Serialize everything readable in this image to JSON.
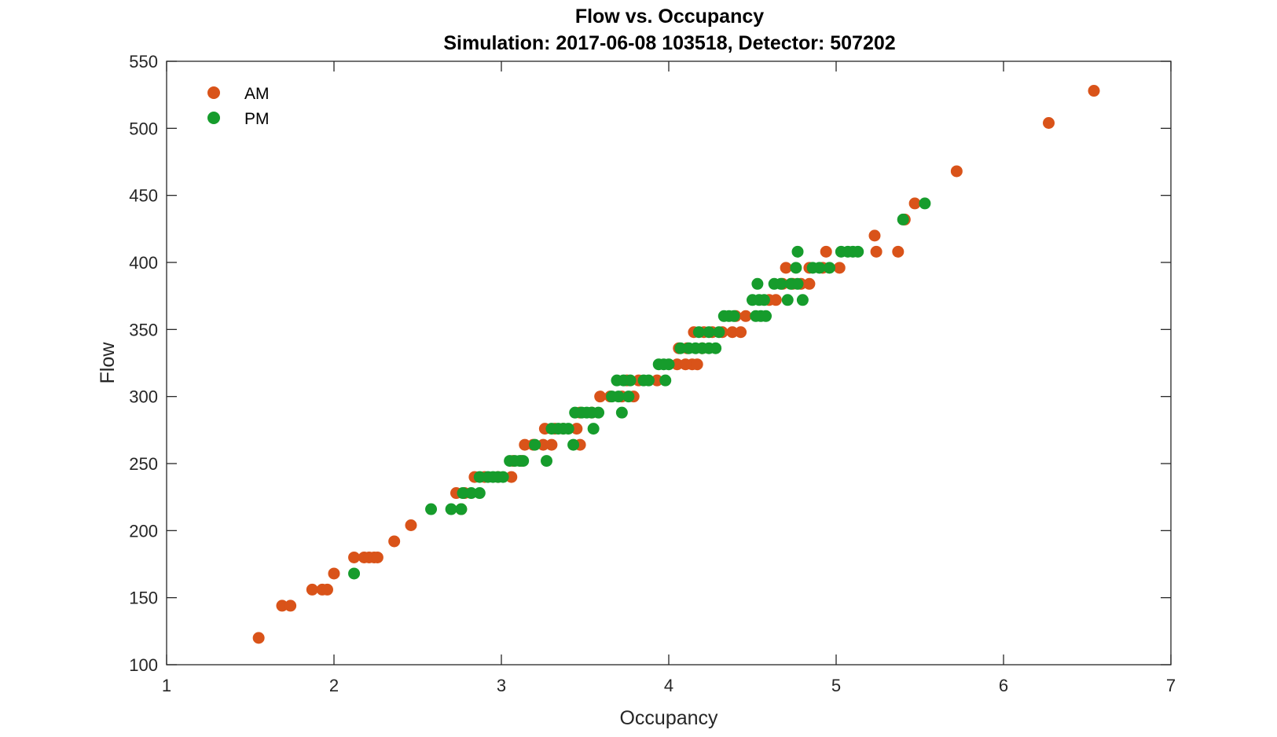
{
  "chart_data": {
    "type": "scatter",
    "title": "Flow vs. Occupancy",
    "subtitle": "Simulation:  2017-06-08 103518,  Detector:  507202",
    "xlabel": "Occupancy",
    "ylabel": "Flow",
    "xlim": [
      1,
      7
    ],
    "ylim": [
      100,
      550
    ],
    "xticks": [
      1,
      2,
      3,
      4,
      5,
      6,
      7
    ],
    "yticks": [
      100,
      150,
      200,
      250,
      300,
      350,
      400,
      450,
      500,
      550
    ],
    "grid": false,
    "legend_position": "top-left",
    "series": [
      {
        "name": "AM",
        "color": "#d95319",
        "points": [
          [
            1.55,
            120
          ],
          [
            1.69,
            144
          ],
          [
            1.74,
            144
          ],
          [
            1.87,
            156
          ],
          [
            1.93,
            156
          ],
          [
            1.96,
            156
          ],
          [
            2.0,
            168
          ],
          [
            2.12,
            180
          ],
          [
            2.18,
            180
          ],
          [
            2.21,
            180
          ],
          [
            2.24,
            180
          ],
          [
            2.26,
            180
          ],
          [
            2.36,
            192
          ],
          [
            2.46,
            204
          ],
          [
            2.76,
            216
          ],
          [
            2.73,
            228
          ],
          [
            2.78,
            228
          ],
          [
            2.84,
            240
          ],
          [
            2.9,
            240
          ],
          [
            2.98,
            240
          ],
          [
            3.06,
            240
          ],
          [
            3.07,
            252
          ],
          [
            3.12,
            252
          ],
          [
            3.14,
            264
          ],
          [
            3.19,
            264
          ],
          [
            3.25,
            264
          ],
          [
            3.3,
            264
          ],
          [
            3.47,
            264
          ],
          [
            3.26,
            276
          ],
          [
            3.32,
            276
          ],
          [
            3.37,
            276
          ],
          [
            3.45,
            276
          ],
          [
            3.47,
            288
          ],
          [
            3.54,
            288
          ],
          [
            3.59,
            300
          ],
          [
            3.65,
            300
          ],
          [
            3.72,
            300
          ],
          [
            3.79,
            300
          ],
          [
            3.75,
            312
          ],
          [
            3.82,
            312
          ],
          [
            3.93,
            312
          ],
          [
            4.05,
            324
          ],
          [
            4.1,
            324
          ],
          [
            4.14,
            324
          ],
          [
            4.17,
            324
          ],
          [
            4.06,
            336
          ],
          [
            4.11,
            336
          ],
          [
            4.2,
            336
          ],
          [
            4.15,
            348
          ],
          [
            4.21,
            348
          ],
          [
            4.26,
            348
          ],
          [
            4.32,
            348
          ],
          [
            4.38,
            348
          ],
          [
            4.43,
            348
          ],
          [
            4.4,
            360
          ],
          [
            4.46,
            360
          ],
          [
            4.6,
            372
          ],
          [
            4.64,
            372
          ],
          [
            4.68,
            384
          ],
          [
            4.74,
            384
          ],
          [
            4.79,
            384
          ],
          [
            4.84,
            384
          ],
          [
            4.7,
            396
          ],
          [
            4.84,
            396
          ],
          [
            4.92,
            396
          ],
          [
            5.02,
            396
          ],
          [
            4.94,
            408
          ],
          [
            5.24,
            408
          ],
          [
            5.37,
            408
          ],
          [
            5.23,
            420
          ],
          [
            5.41,
            432
          ],
          [
            5.47,
            444
          ],
          [
            5.72,
            468
          ],
          [
            6.27,
            504
          ],
          [
            6.54,
            528
          ]
        ]
      },
      {
        "name": "PM",
        "color": "#169c2c",
        "points": [
          [
            2.12,
            168
          ],
          [
            2.58,
            216
          ],
          [
            2.7,
            216
          ],
          [
            2.76,
            216
          ],
          [
            2.77,
            228
          ],
          [
            2.82,
            228
          ],
          [
            2.87,
            228
          ],
          [
            2.87,
            240
          ],
          [
            2.92,
            240
          ],
          [
            2.95,
            240
          ],
          [
            2.98,
            240
          ],
          [
            3.01,
            240
          ],
          [
            3.05,
            252
          ],
          [
            3.08,
            252
          ],
          [
            3.11,
            252
          ],
          [
            3.13,
            252
          ],
          [
            3.27,
            252
          ],
          [
            3.2,
            264
          ],
          [
            3.3,
            276
          ],
          [
            3.34,
            276
          ],
          [
            3.37,
            276
          ],
          [
            3.4,
            276
          ],
          [
            3.55,
            276
          ],
          [
            3.43,
            264
          ],
          [
            3.44,
            288
          ],
          [
            3.48,
            288
          ],
          [
            3.51,
            288
          ],
          [
            3.54,
            288
          ],
          [
            3.58,
            288
          ],
          [
            3.72,
            288
          ],
          [
            3.66,
            300
          ],
          [
            3.7,
            300
          ],
          [
            3.76,
            300
          ],
          [
            3.69,
            312
          ],
          [
            3.73,
            312
          ],
          [
            3.77,
            312
          ],
          [
            3.85,
            312
          ],
          [
            3.88,
            312
          ],
          [
            3.98,
            312
          ],
          [
            3.94,
            324
          ],
          [
            3.97,
            324
          ],
          [
            4.0,
            324
          ],
          [
            4.07,
            336
          ],
          [
            4.12,
            336
          ],
          [
            4.16,
            336
          ],
          [
            4.2,
            336
          ],
          [
            4.24,
            336
          ],
          [
            4.28,
            336
          ],
          [
            4.18,
            348
          ],
          [
            4.24,
            348
          ],
          [
            4.3,
            348
          ],
          [
            4.33,
            360
          ],
          [
            4.36,
            360
          ],
          [
            4.39,
            360
          ],
          [
            4.52,
            360
          ],
          [
            4.55,
            360
          ],
          [
            4.58,
            360
          ],
          [
            4.5,
            372
          ],
          [
            4.54,
            372
          ],
          [
            4.57,
            372
          ],
          [
            4.71,
            372
          ],
          [
            4.8,
            372
          ],
          [
            4.53,
            384
          ],
          [
            4.63,
            384
          ],
          [
            4.67,
            384
          ],
          [
            4.73,
            384
          ],
          [
            4.77,
            384
          ],
          [
            4.76,
            396
          ],
          [
            4.86,
            396
          ],
          [
            4.9,
            396
          ],
          [
            4.96,
            396
          ],
          [
            4.77,
            408
          ],
          [
            5.03,
            408
          ],
          [
            5.07,
            408
          ],
          [
            5.1,
            408
          ],
          [
            5.13,
            408
          ],
          [
            5.4,
            432
          ],
          [
            5.53,
            444
          ]
        ]
      }
    ]
  }
}
